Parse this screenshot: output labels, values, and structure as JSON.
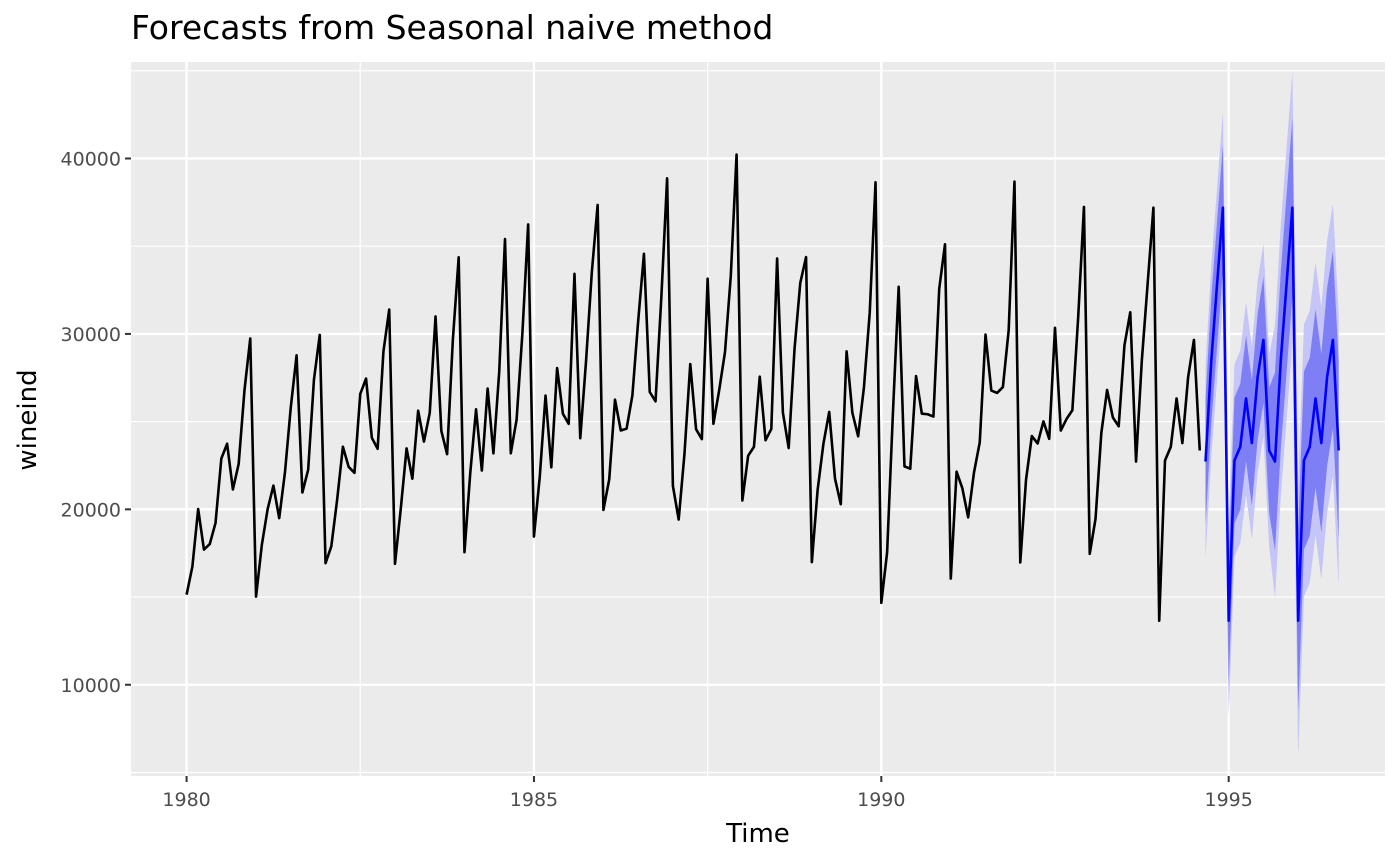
{
  "chart_data": {
    "type": "line",
    "title": "Forecasts from Seasonal naive method",
    "xlabel": "Time",
    "ylabel": "wineind",
    "xlim": [
      1979.2,
      1997.25
    ],
    "ylim": [
      4800,
      45500
    ],
    "x_ticks": [
      1980,
      1985,
      1990,
      1995
    ],
    "x_tick_labels": [
      "1980",
      "1985",
      "1990",
      "1995"
    ],
    "y_ticks": [
      10000,
      20000,
      30000,
      40000
    ],
    "y_tick_labels": [
      "10000",
      "20000",
      "30000",
      "40000"
    ],
    "grid": true,
    "legend": "none",
    "colors": {
      "panel": "#ebebeb",
      "grid_major": "#ffffff",
      "series": "#000000",
      "forecast": "#0000ff",
      "band80": "#7f7ff5",
      "band95": "#c5c5f7"
    },
    "history": {
      "start": 1980.0,
      "frequency": 12,
      "values": [
        15136,
        16733,
        20016,
        17708,
        18019,
        19227,
        22893,
        23739,
        21133,
        22591,
        26786,
        29740,
        15028,
        17977,
        20008,
        21354,
        19498,
        22125,
        25817,
        28779,
        20960,
        22254,
        27392,
        29945,
        16933,
        17892,
        20533,
        23569,
        22417,
        22084,
        26580,
        27454,
        24081,
        23451,
        28991,
        31386,
        16896,
        20045,
        23471,
        21747,
        25621,
        23859,
        25500,
        30998,
        24475,
        23145,
        29701,
        34365,
        17556,
        22077,
        25702,
        22214,
        26886,
        23191,
        27831,
        35406,
        23195,
        25110,
        30009,
        36242,
        18450,
        21845,
        26488,
        22394,
        28057,
        25451,
        24872,
        33424,
        24052,
        28449,
        33533,
        37351,
        19969,
        21701,
        26249,
        24493,
        24603,
        26485,
        30723,
        34569,
        26689,
        26157,
        32064,
        38870,
        21337,
        19419,
        23166,
        28286,
        24570,
        24001,
        33151,
        24878,
        26804,
        28967,
        33311,
        40226,
        20504,
        23060,
        23562,
        27562,
        23940,
        24584,
        34303,
        25517,
        23494,
        29095,
        32903,
        34379,
        16991,
        21109,
        23740,
        25552,
        21752,
        20294,
        29009,
        25500,
        24166,
        26960,
        31222,
        38641,
        14672,
        17543,
        25453,
        32683,
        22449,
        22316,
        27595,
        25451,
        25421,
        25288,
        32568,
        35110,
        16052,
        22146,
        21198,
        19543,
        22084,
        23816,
        29961,
        26773,
        26635,
        26972,
        30207,
        38687,
        16974,
        21697,
        24179,
        23757,
        25013,
        24019,
        30345,
        24488,
        25156,
        25650,
        30923,
        37240,
        17466,
        19463,
        24352,
        26805,
        25236,
        24735,
        29356,
        31234,
        22724,
        28496,
        32857,
        37198,
        13652,
        22784,
        23565,
        26323,
        23779,
        27549,
        29660,
        23356
      ]
    },
    "forecast": {
      "start": 1994.6667,
      "frequency": 12,
      "values": [
        22724,
        28496,
        32857,
        37198,
        13652,
        22784,
        23565,
        26323,
        23779,
        27549,
        29660,
        23356,
        22724,
        28496,
        32857,
        37198,
        13652,
        22784,
        23565,
        26323,
        23779,
        27549,
        29660,
        23356
      ],
      "sigma": 2800,
      "level80_z": 1.2816,
      "level95_z": 1.96
    }
  }
}
